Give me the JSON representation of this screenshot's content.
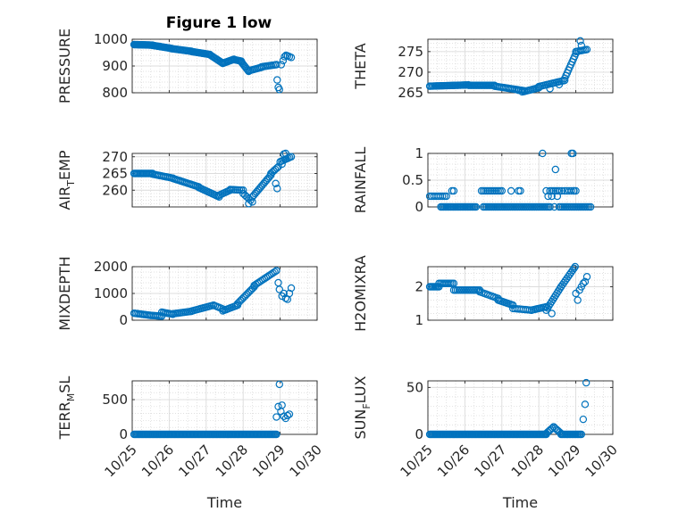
{
  "figure": {
    "title": "Figure 1 low",
    "marker_color": "#0072BD"
  },
  "chart_data": [
    {
      "type": "scatter",
      "ylabel": "PRESSURE",
      "xlim": [
        0,
        5
      ],
      "ylim": [
        800,
        1000
      ],
      "yticks": [
        800,
        900,
        1000
      ],
      "xticklabels": [],
      "grid": true,
      "segments": [
        {
          "x0": 0.05,
          "x1": 0.55,
          "y0": 980,
          "y1": 978,
          "n": 24
        },
        {
          "x0": 0.55,
          "x1": 1.05,
          "y0": 977,
          "y1": 966,
          "n": 18
        },
        {
          "x0": 1.05,
          "x1": 1.6,
          "y0": 965,
          "y1": 955,
          "n": 18
        },
        {
          "x0": 1.6,
          "x1": 2.1,
          "y0": 954,
          "y1": 943,
          "n": 18
        },
        {
          "x0": 2.1,
          "x1": 2.45,
          "y0": 942,
          "y1": 910,
          "n": 12
        },
        {
          "x0": 2.45,
          "x1": 2.75,
          "y0": 910,
          "y1": 925,
          "n": 10
        },
        {
          "x0": 2.75,
          "x1": 2.95,
          "y0": 924,
          "y1": 918,
          "n": 8
        },
        {
          "x0": 2.95,
          "x1": 3.15,
          "y0": 915,
          "y1": 880,
          "n": 8
        },
        {
          "x0": 3.15,
          "x1": 3.5,
          "y0": 882,
          "y1": 895,
          "n": 10
        },
        {
          "x0": 3.5,
          "x1": 3.9,
          "y0": 897,
          "y1": 905,
          "n": 10
        }
      ],
      "points": [
        [
          3.92,
          848
        ],
        [
          3.95,
          820
        ],
        [
          3.98,
          812
        ],
        [
          4.03,
          905
        ],
        [
          4.08,
          920
        ],
        [
          4.12,
          935
        ],
        [
          4.16,
          940
        ],
        [
          4.2,
          938
        ],
        [
          4.25,
          935
        ],
        [
          4.3,
          932
        ]
      ]
    },
    {
      "type": "scatter",
      "ylabel": "THETA",
      "xlim": [
        0,
        5
      ],
      "ylim": [
        265,
        278
      ],
      "yticks": [
        265,
        270,
        275
      ],
      "xticklabels": [],
      "grid": true,
      "segments": [
        {
          "x0": 0.05,
          "x1": 1.1,
          "y0": 266.6,
          "y1": 266.9,
          "n": 30
        },
        {
          "x0": 1.1,
          "x1": 1.8,
          "y0": 266.8,
          "y1": 266.8,
          "n": 20
        },
        {
          "x0": 1.8,
          "x1": 2.6,
          "y0": 266.6,
          "y1": 265.5,
          "n": 20
        },
        {
          "x0": 2.6,
          "x1": 3.0,
          "y0": 265.3,
          "y1": 266.2,
          "n": 10
        },
        {
          "x0": 3.0,
          "x1": 3.7,
          "y0": 266.5,
          "y1": 268.0,
          "n": 16
        },
        {
          "x0": 3.7,
          "x1": 4.0,
          "y0": 268.5,
          "y1": 274.5,
          "n": 10
        },
        {
          "x0": 4.0,
          "x1": 4.3,
          "y0": 275.0,
          "y1": 275.5,
          "n": 8
        }
      ],
      "points": [
        [
          2.45,
          265.6
        ],
        [
          2.55,
          265.2
        ],
        [
          3.3,
          266.0
        ],
        [
          3.55,
          267.0
        ],
        [
          4.12,
          277.6
        ],
        [
          4.15,
          276.5
        ]
      ]
    },
    {
      "type": "scatter",
      "ylabel": "AIR_TEMP",
      "xlim": [
        0,
        5
      ],
      "ylim": [
        255,
        271
      ],
      "yticks": [
        260,
        265,
        270
      ],
      "xticklabels": [],
      "grid": true,
      "segments": [
        {
          "x0": 0.05,
          "x1": 0.55,
          "y0": 265.0,
          "y1": 265.0,
          "n": 16
        },
        {
          "x0": 0.55,
          "x1": 1.1,
          "y0": 264.8,
          "y1": 263.6,
          "n": 14
        },
        {
          "x0": 1.1,
          "x1": 1.8,
          "y0": 263.5,
          "y1": 261.0,
          "n": 18
        },
        {
          "x0": 1.8,
          "x1": 2.35,
          "y0": 260.8,
          "y1": 258.0,
          "n": 14
        },
        {
          "x0": 2.35,
          "x1": 2.65,
          "y0": 258.5,
          "y1": 260.0,
          "n": 8
        },
        {
          "x0": 2.65,
          "x1": 3.0,
          "y0": 260.2,
          "y1": 260.0,
          "n": 8
        },
        {
          "x0": 3.0,
          "x1": 3.25,
          "y0": 259.0,
          "y1": 256.5,
          "n": 6
        },
        {
          "x0": 3.25,
          "x1": 3.75,
          "y0": 258.0,
          "y1": 264.5,
          "n": 14
        },
        {
          "x0": 3.75,
          "x1": 3.95,
          "y0": 265.0,
          "y1": 267.0,
          "n": 6
        },
        {
          "x0": 4.0,
          "x1": 4.3,
          "y0": 268.5,
          "y1": 270.0,
          "n": 8
        }
      ],
      "points": [
        [
          3.15,
          256.0
        ],
        [
          3.88,
          262.0
        ],
        [
          3.92,
          260.5
        ],
        [
          4.05,
          267.8
        ],
        [
          4.1,
          270.8
        ],
        [
          4.15,
          271.0
        ]
      ]
    },
    {
      "type": "scatter",
      "ylabel": "RAINFALL",
      "xlim": [
        0,
        5
      ],
      "ylim": [
        0,
        1
      ],
      "yticks": [
        0,
        0.5,
        1
      ],
      "ytickfmt": [
        "0",
        "0.5",
        "1"
      ],
      "xticklabels": [],
      "grid": true,
      "segments": [
        {
          "x0": 0.05,
          "x1": 0.45,
          "y0": 0.2,
          "y1": 0.2,
          "n": 8
        },
        {
          "x0": 0.35,
          "x1": 1.3,
          "y0": 0.0,
          "y1": 0.0,
          "n": 26
        },
        {
          "x0": 1.45,
          "x1": 2.0,
          "y0": 0.3,
          "y1": 0.3,
          "n": 12
        },
        {
          "x0": 1.5,
          "x1": 3.3,
          "y0": 0.0,
          "y1": 0.0,
          "n": 40
        },
        {
          "x0": 3.3,
          "x1": 3.55,
          "y0": 0.3,
          "y1": 0.3,
          "n": 6
        },
        {
          "x0": 3.7,
          "x1": 4.0,
          "y0": 0.3,
          "y1": 0.3,
          "n": 6
        },
        {
          "x0": 3.6,
          "x1": 4.4,
          "y0": 0.0,
          "y1": 0.0,
          "n": 18
        }
      ],
      "points": [
        [
          0.5,
          0.2
        ],
        [
          0.65,
          0.3
        ],
        [
          0.7,
          0.3
        ],
        [
          2.25,
          0.3
        ],
        [
          2.45,
          0.3
        ],
        [
          2.5,
          0.3
        ],
        [
          3.1,
          1.0
        ],
        [
          3.2,
          0.3
        ],
        [
          3.25,
          0.2
        ],
        [
          3.35,
          0.2
        ],
        [
          3.42,
          0.0
        ],
        [
          3.45,
          0.7
        ],
        [
          3.5,
          0.2
        ],
        [
          3.55,
          0.0
        ],
        [
          3.62,
          0.3
        ],
        [
          3.88,
          1.0
        ],
        [
          3.92,
          1.0
        ],
        [
          3.95,
          0.3
        ]
      ]
    },
    {
      "type": "scatter",
      "ylabel": "MIXDEPTH",
      "xlim": [
        0,
        5
      ],
      "ylim": [
        0,
        2000
      ],
      "yticks": [
        0,
        1000,
        2000
      ],
      "xticklabels": [],
      "grid": true,
      "segments": [
        {
          "x0": 0.05,
          "x1": 0.5,
          "y0": 260,
          "y1": 180,
          "n": 12
        },
        {
          "x0": 0.5,
          "x1": 0.8,
          "y0": 180,
          "y1": 150,
          "n": 8
        },
        {
          "x0": 0.8,
          "x1": 1.1,
          "y0": 300,
          "y1": 220,
          "n": 8
        },
        {
          "x0": 1.1,
          "x1": 1.6,
          "y0": 240,
          "y1": 330,
          "n": 12
        },
        {
          "x0": 1.6,
          "x1": 2.2,
          "y0": 340,
          "y1": 560,
          "n": 14
        },
        {
          "x0": 2.2,
          "x1": 2.45,
          "y0": 560,
          "y1": 420,
          "n": 6
        },
        {
          "x0": 2.45,
          "x1": 2.85,
          "y0": 350,
          "y1": 560,
          "n": 10
        },
        {
          "x0": 2.85,
          "x1": 3.3,
          "y0": 620,
          "y1": 1250,
          "n": 12
        },
        {
          "x0": 3.3,
          "x1": 3.9,
          "y0": 1300,
          "y1": 1850,
          "n": 14
        }
      ],
      "points": [
        [
          3.95,
          1400
        ],
        [
          3.98,
          1150
        ],
        [
          4.05,
          900
        ],
        [
          4.1,
          1000
        ],
        [
          4.15,
          820
        ],
        [
          4.2,
          780
        ],
        [
          4.25,
          1000
        ],
        [
          4.3,
          1200
        ]
      ]
    },
    {
      "type": "scatter",
      "ylabel": "H2OMIXRA",
      "xlim": [
        0,
        5
      ],
      "ylim": [
        1,
        2.6
      ],
      "yticks": [
        1,
        2
      ],
      "xticklabels": [],
      "grid": true,
      "segments": [
        {
          "x0": 0.05,
          "x1": 0.3,
          "y0": 2.0,
          "y1": 2.0,
          "n": 8
        },
        {
          "x0": 0.3,
          "x1": 0.7,
          "y0": 2.1,
          "y1": 2.1,
          "n": 10
        },
        {
          "x0": 0.7,
          "x1": 1.4,
          "y0": 1.9,
          "y1": 1.9,
          "n": 16
        },
        {
          "x0": 1.4,
          "x1": 1.9,
          "y0": 1.85,
          "y1": 1.65,
          "n": 10
        },
        {
          "x0": 1.9,
          "x1": 2.3,
          "y0": 1.6,
          "y1": 1.45,
          "n": 10
        },
        {
          "x0": 2.3,
          "x1": 2.8,
          "y0": 1.35,
          "y1": 1.3,
          "n": 10
        },
        {
          "x0": 2.8,
          "x1": 3.2,
          "y0": 1.3,
          "y1": 1.4,
          "n": 10
        },
        {
          "x0": 3.2,
          "x1": 3.6,
          "y0": 1.3,
          "y1": 2.0,
          "n": 12
        },
        {
          "x0": 3.6,
          "x1": 3.95,
          "y0": 2.0,
          "y1": 2.55,
          "n": 10
        }
      ],
      "points": [
        [
          3.35,
          1.2
        ],
        [
          3.98,
          2.6
        ],
        [
          4.0,
          1.8
        ],
        [
          4.05,
          1.6
        ],
        [
          4.1,
          1.9
        ],
        [
          4.15,
          2.0
        ],
        [
          4.2,
          2.1
        ],
        [
          4.25,
          2.15
        ],
        [
          4.3,
          2.3
        ]
      ]
    },
    {
      "type": "scatter",
      "ylabel": "TERR_MSL",
      "xlim": [
        0,
        5
      ],
      "ylim": [
        0,
        770
      ],
      "yticks": [
        0,
        500
      ],
      "xticklabels": [
        "10/25",
        "10/26",
        "10/27",
        "10/28",
        "10/29",
        "10/30"
      ],
      "xlabel": "Time",
      "grid": true,
      "segments": [
        {
          "x0": 0.05,
          "x1": 3.9,
          "y0": 0,
          "y1": 0,
          "n": 120
        }
      ],
      "points": [
        [
          3.9,
          250
        ],
        [
          3.95,
          400
        ],
        [
          3.98,
          720
        ],
        [
          4.02,
          330
        ],
        [
          4.05,
          420
        ],
        [
          4.1,
          260
        ],
        [
          4.15,
          230
        ],
        [
          4.2,
          270
        ],
        [
          4.25,
          290
        ]
      ]
    },
    {
      "type": "scatter",
      "ylabel": "SUN_FLUX",
      "xlim": [
        0,
        5
      ],
      "ylim": [
        0,
        57
      ],
      "yticks": [
        0,
        50
      ],
      "xticklabels": [
        "10/25",
        "10/26",
        "10/27",
        "10/28",
        "10/29",
        "10/30"
      ],
      "xlabel": "Time",
      "grid": true,
      "segments": [
        {
          "x0": 0.05,
          "x1": 3.2,
          "y0": 0,
          "y1": 0,
          "n": 100
        },
        {
          "x0": 3.2,
          "x1": 3.4,
          "y0": 1,
          "y1": 8,
          "n": 6
        },
        {
          "x0": 3.4,
          "x1": 3.6,
          "y0": 8,
          "y1": 1,
          "n": 6
        },
        {
          "x0": 3.6,
          "x1": 4.15,
          "y0": 0,
          "y1": 0,
          "n": 16
        }
      ],
      "points": [
        [
          4.2,
          16
        ],
        [
          4.25,
          32
        ],
        [
          4.28,
          55
        ]
      ]
    }
  ]
}
